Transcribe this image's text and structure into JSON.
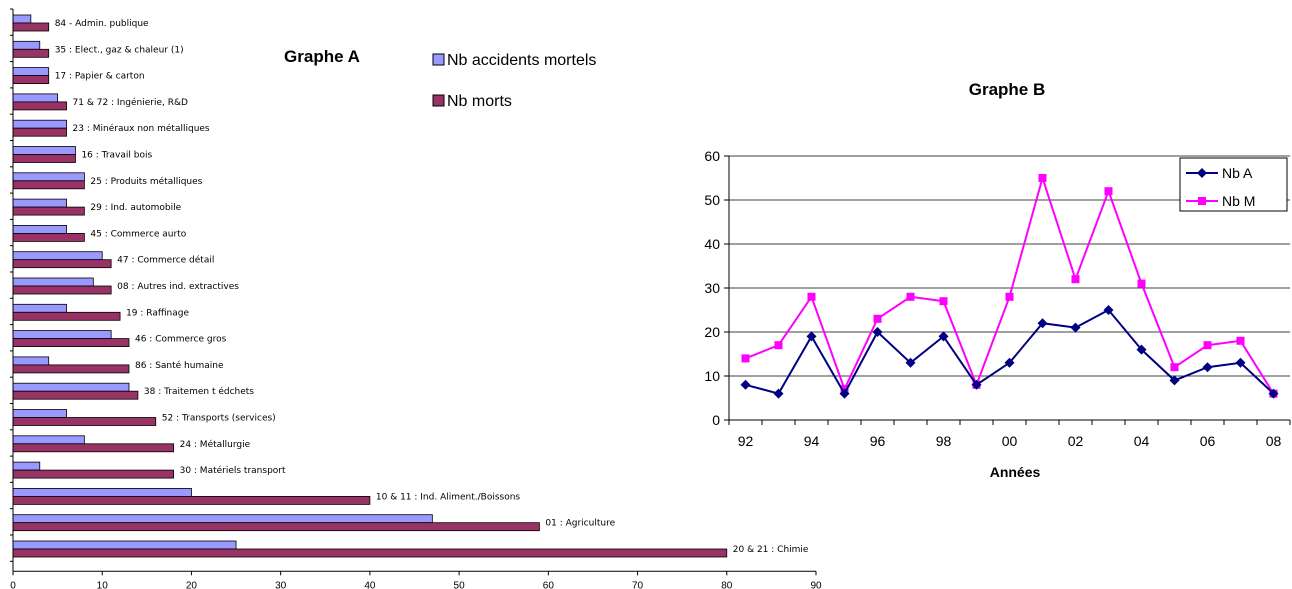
{
  "chart_data": [
    {
      "type": "bar",
      "title": "Graphe A",
      "orientation": "horizontal",
      "xlim": [
        0,
        90
      ],
      "xticks": [
        "0",
        "10",
        "20",
        "30",
        "40",
        "50",
        "60",
        "70",
        "80",
        "90"
      ],
      "legend_position": "top-center",
      "categories": [
        "84 - Admin. publique",
        "35 : Elect., gaz & chaleur (1)",
        "17 : Papier & carton",
        "71 & 72 : Ingénierie, R&D",
        "23 : Minéraux non métalliques",
        "16 : Travail bois",
        "25 : Produits métalliques",
        "29 : Ind. automobile",
        "45 : Commerce aurto",
        "47 : Commerce détail",
        "08 : Autres ind. extractives",
        "19 : Raffinage",
        "46 : Commerce gros",
        "86 : Santé humaine",
        "38 : Traitemen t édchets",
        "52 : Transports (services)",
        "24 : Métallurgie",
        "30 : Matériels transport",
        "10 & 11 : Ind. Aliment./Boissons",
        "01 : Agriculture",
        "20 & 21 : Chimie"
      ],
      "series": [
        {
          "name": "Nb accidents mortels",
          "color": "#9999ff",
          "values": [
            2,
            3,
            4,
            5,
            6,
            7,
            8,
            6,
            6,
            10,
            9,
            6,
            11,
            4,
            13,
            6,
            8,
            3,
            20,
            47,
            25
          ]
        },
        {
          "name": "Nb morts",
          "color": "#993366",
          "values": [
            4,
            4,
            4,
            6,
            6,
            7,
            8,
            8,
            8,
            11,
            11,
            12,
            13,
            13,
            14,
            16,
            18,
            18,
            40,
            59,
            80
          ]
        }
      ]
    },
    {
      "type": "line",
      "title": "Graphe B",
      "xlabel": "Années",
      "ylabel": "",
      "ylim": [
        0,
        60
      ],
      "yticks": [
        "0",
        "10",
        "20",
        "30",
        "40",
        "50",
        "60"
      ],
      "grid": true,
      "legend_position": "top-right",
      "x": [
        "92",
        "93",
        "94",
        "95",
        "96",
        "97",
        "98",
        "99",
        "00",
        "01",
        "02",
        "03",
        "04",
        "05",
        "06",
        "07",
        "08"
      ],
      "xtick_labels": [
        "92",
        "94",
        "96",
        "98",
        "00",
        "02",
        "04",
        "06",
        "08"
      ],
      "series": [
        {
          "name": "Nb A",
          "color": "#000080",
          "marker": "diamond",
          "values": [
            8,
            6,
            19,
            6,
            20,
            13,
            19,
            8,
            13,
            22,
            21,
            25,
            16,
            9,
            12,
            13,
            6
          ]
        },
        {
          "name": "Nb M",
          "color": "#ff00ff",
          "marker": "square",
          "values": [
            14,
            17,
            28,
            7,
            23,
            28,
            27,
            8,
            28,
            55,
            32,
            52,
            31,
            12,
            17,
            18,
            6
          ]
        }
      ]
    }
  ]
}
